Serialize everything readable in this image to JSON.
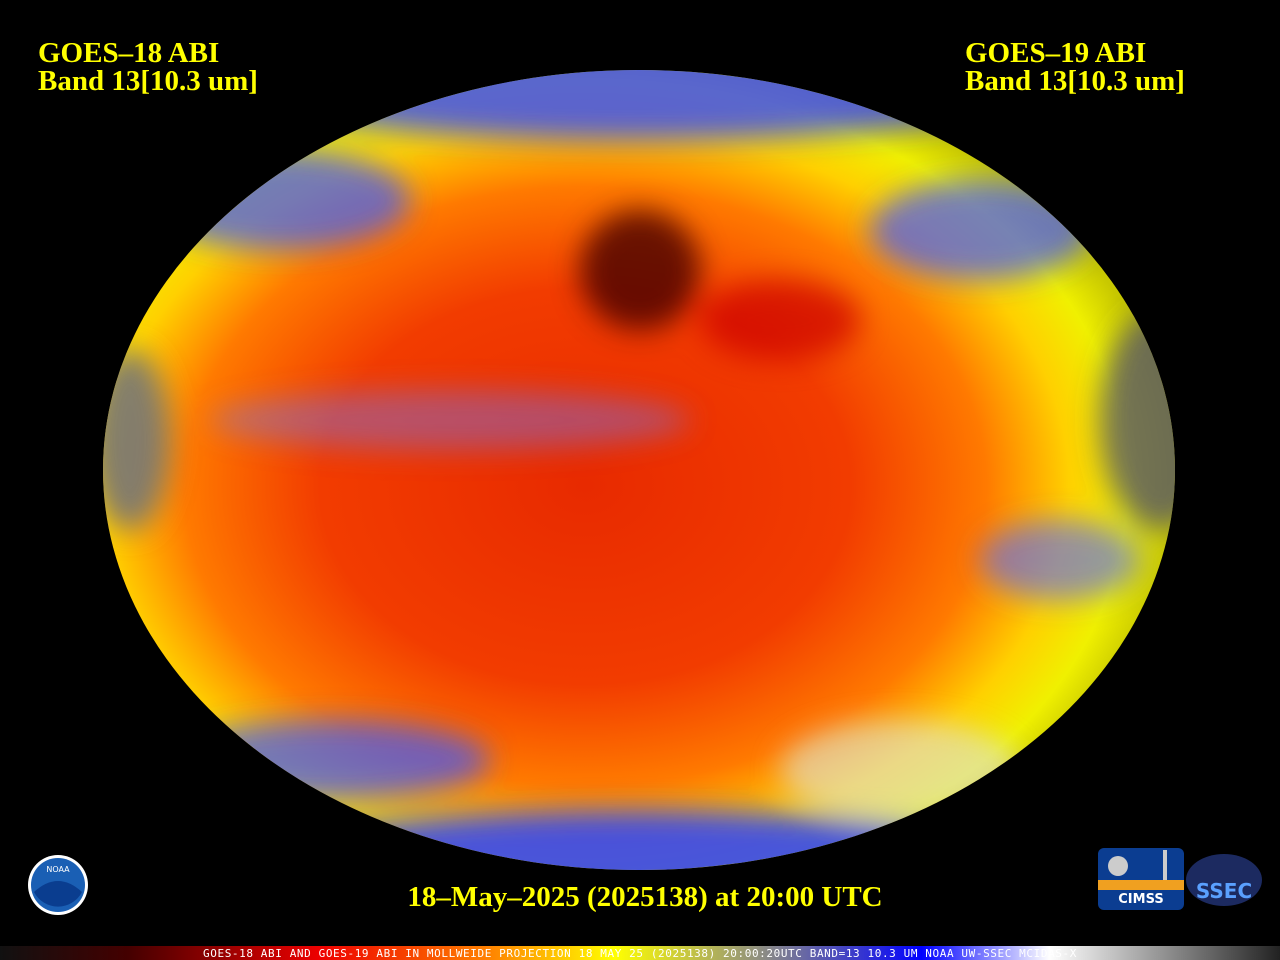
{
  "header": {
    "left": {
      "title": "GOES–18 ABI",
      "band": "Band 13[10.3 um]"
    },
    "right": {
      "title": "GOES–19 ABI",
      "band": "Band 13[10.3 um]"
    }
  },
  "timestamp": "18–May–2025 (2025138) at 20:00 UTC",
  "caption": "GOES-18 ABI AND GOES-19 ABI IN MOLLWEIDE PROJECTION 18 MAY 25 (2025138) 20:00:20UTC BAND=13 10.3 UM NOAA UW-SSEC MCIDAS-X",
  "logos": {
    "noaa": "NOAA",
    "cimss": "CIMSS",
    "ssec": "SSEC"
  }
}
